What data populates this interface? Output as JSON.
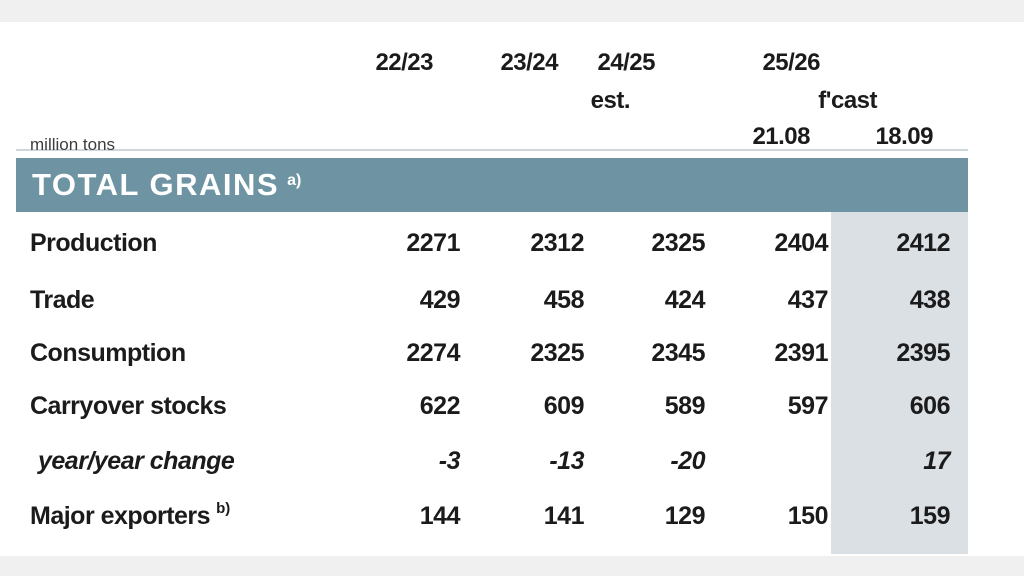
{
  "unit_label": "million tons",
  "header": {
    "years": [
      "22/23",
      "23/24",
      "24/25",
      "25/26"
    ],
    "est_label": "est.",
    "fcast_label": "f'cast",
    "dates": [
      "21.08",
      "18.09"
    ]
  },
  "section": {
    "title": "TOTAL GRAINS",
    "footnote": "a)"
  },
  "rows": [
    {
      "label": "Production",
      "values": [
        "2271",
        "2312",
        "2325",
        "2404",
        "2412"
      ]
    },
    {
      "label": "Trade",
      "values": [
        "429",
        "458",
        "424",
        "437",
        "438"
      ]
    },
    {
      "label": "Consumption",
      "values": [
        "2274",
        "2325",
        "2345",
        "2391",
        "2395"
      ]
    },
    {
      "label": "Carryover stocks",
      "values": [
        "622",
        "609",
        "589",
        "597",
        "606"
      ]
    },
    {
      "label": "year/year change",
      "values": [
        "-3",
        "-13",
        "-20",
        "",
        "17"
      ],
      "italic": true
    },
    {
      "label": "Major exporters",
      "footnote": "b)",
      "values": [
        "144",
        "141",
        "129",
        "150",
        "159"
      ]
    }
  ],
  "colors": {
    "header_bar": "#6e94a3",
    "highlight": "#dbe0e5",
    "strip": "#f0f0f0"
  }
}
